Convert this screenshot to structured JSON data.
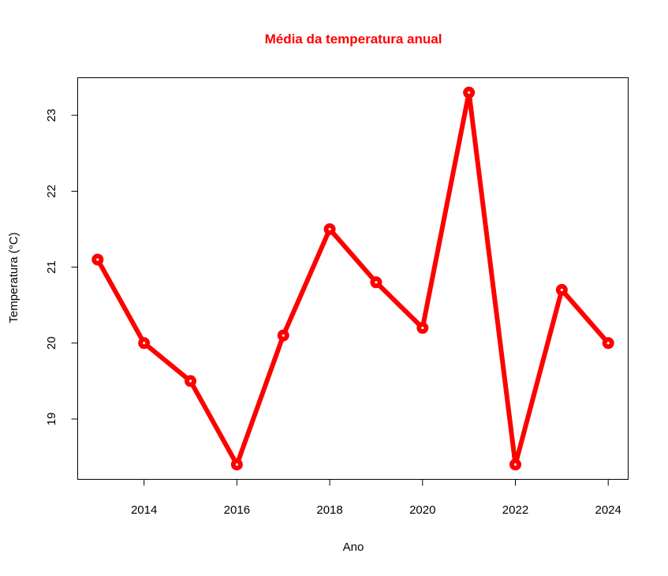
{
  "chart_data": {
    "type": "line",
    "title": "Média da temperatura anual",
    "xlabel": "Ano",
    "ylabel": "Temperatura (°C)",
    "x": [
      2013,
      2014,
      2015,
      2016,
      2017,
      2018,
      2019,
      2020,
      2021,
      2022,
      2023,
      2024
    ],
    "y": [
      21.1,
      20.0,
      19.5,
      18.4,
      20.1,
      21.5,
      20.8,
      20.2,
      23.3,
      18.4,
      20.7,
      20.0
    ],
    "x_ticks": [
      "2014",
      "2016",
      "2018",
      "2020",
      "2022",
      "2024"
    ],
    "y_ticks": [
      "19",
      "20",
      "21",
      "22",
      "23"
    ],
    "xlim": [
      2012.57,
      2024.43
    ],
    "ylim": [
      18.205,
      23.495
    ],
    "grid": false,
    "legend": "none",
    "colors": {
      "line": "#ff0000",
      "point_center": "#ffffff",
      "title": "#ff0000"
    }
  }
}
